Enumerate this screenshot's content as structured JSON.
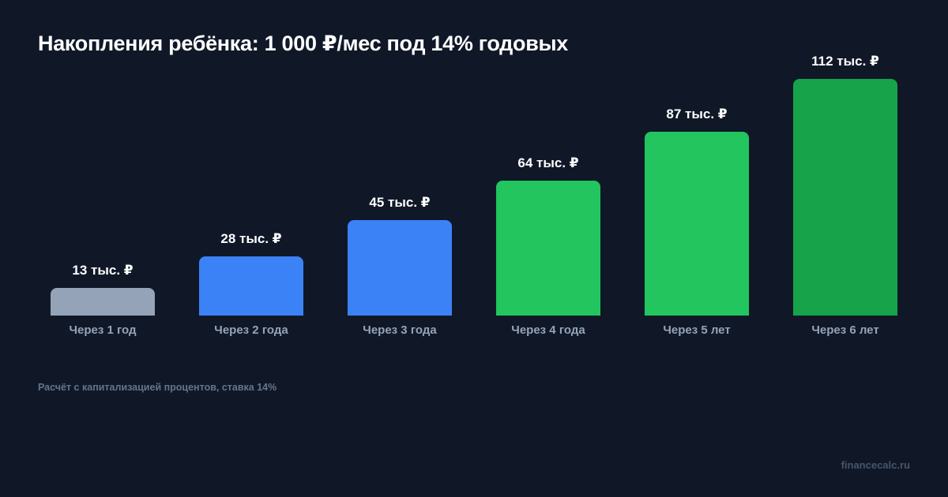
{
  "title": "Накопления ребёнка: 1 000 ₽/мес под 14% годовых",
  "footnote": "Расчёт с капитализацией процентов, ставка 14%",
  "brand": "financecalc.ru",
  "colors": {
    "background": "#101828",
    "bar_gray": "#94a3b8",
    "bar_blue": "#3b82f6",
    "bar_green": "#22c55e",
    "bar_dark_green": "#16a34a",
    "label_muted": "#94a3b8"
  },
  "chart_data": {
    "type": "bar",
    "title": "Накопления ребёнка: 1 000 ₽/мес под 14% годовых",
    "xlabel": "",
    "ylabel": "",
    "categories": [
      "Через 1 год",
      "Через 2 года",
      "Через 3 года",
      "Через 4 года",
      "Через 5 лет",
      "Через 6 лет"
    ],
    "values": [
      13,
      28,
      45,
      64,
      87,
      112
    ],
    "unit": "тыс. ₽",
    "data_labels": [
      "13 тыс. ₽",
      "28 тыс. ₽",
      "45 тыс. ₽",
      "64 тыс. ₽",
      "87 тыс. ₽",
      "112 тыс. ₽"
    ],
    "bar_colors": [
      "#94a3b8",
      "#3b82f6",
      "#3b82f6",
      "#22c55e",
      "#22c55e",
      "#16a34a"
    ],
    "ylim": [
      0,
      112
    ],
    "grid": false,
    "legend": "none",
    "annotation": "Расчёт с капитализацией процентов, ставка 14%"
  }
}
